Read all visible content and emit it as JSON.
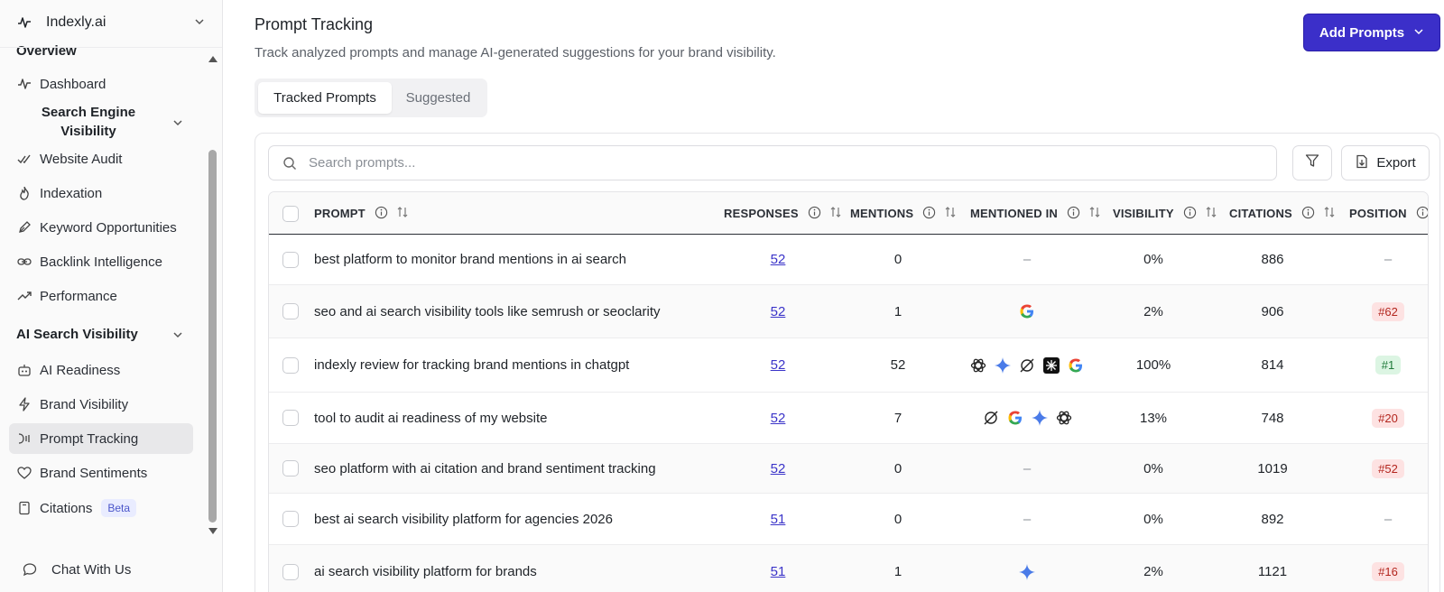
{
  "sidebar": {
    "brand": "Indexly.ai",
    "overview_label": "Overview",
    "items": [
      {
        "label": "Dashboard",
        "icon": "activity-icon"
      },
      {
        "label": "Website Audit",
        "icon": "check-check-icon"
      },
      {
        "label": "Indexation",
        "icon": "flame-icon"
      },
      {
        "label": "Keyword Opportunities",
        "icon": "pen-icon"
      },
      {
        "label": "Backlink Intelligence",
        "icon": "link-icon"
      },
      {
        "label": "Performance",
        "icon": "trending-up-icon"
      },
      {
        "label": "AI Readiness",
        "icon": "bot-icon"
      },
      {
        "label": "Brand Visibility",
        "icon": "zap-icon"
      },
      {
        "label": "Prompt Tracking",
        "icon": "prompt-icon"
      },
      {
        "label": "Brand Sentiments",
        "icon": "heart-icon"
      },
      {
        "label": "Citations",
        "icon": "book-icon",
        "badge": "Beta"
      }
    ],
    "group_search_engine": "Search Engine Visibility",
    "group_ai_search": "AI Search Visibility",
    "chat_label": "Chat With Us"
  },
  "header": {
    "title": "Prompt Tracking",
    "subtitle": "Track analyzed prompts and manage AI-generated suggestions for your brand visibility.",
    "add_button": "Add Prompts"
  },
  "tabs": [
    "Tracked Prompts",
    "Suggested"
  ],
  "search": {
    "placeholder": "Search prompts..."
  },
  "export_label": "Export",
  "columns": [
    "PROMPT",
    "RESPONSES",
    "MENTIONS",
    "MENTIONED IN",
    "VISIBILITY",
    "CITATIONS",
    "POSITION"
  ],
  "rows": [
    {
      "prompt": "best platform to monitor brand mentions in ai search",
      "responses": "52",
      "mentions": "0",
      "engines": [],
      "visibility": "0%",
      "citations": "886",
      "position": "–"
    },
    {
      "prompt": "seo and ai search visibility tools like semrush or seoclarity",
      "responses": "52",
      "mentions": "1",
      "engines": [
        "google"
      ],
      "visibility": "2%",
      "citations": "906",
      "position": "#62"
    },
    {
      "prompt": "indexly review for tracking brand mentions in chatgpt",
      "responses": "52",
      "mentions": "52",
      "engines": [
        "chatgpt",
        "gemini",
        "perplexity",
        "grok",
        "google"
      ],
      "visibility": "100%",
      "citations": "814",
      "position": "#1"
    },
    {
      "prompt": "tool to audit ai readiness of my website",
      "responses": "52",
      "mentions": "7",
      "engines": [
        "perplexity",
        "google",
        "gemini",
        "chatgpt"
      ],
      "visibility": "13%",
      "citations": "748",
      "position": "#20"
    },
    {
      "prompt": "seo platform with ai citation and brand sentiment tracking",
      "responses": "52",
      "mentions": "0",
      "engines": [],
      "visibility": "0%",
      "citations": "1019",
      "position": "#52"
    },
    {
      "prompt": "best ai search visibility platform for agencies 2026",
      "responses": "51",
      "mentions": "0",
      "engines": [],
      "visibility": "0%",
      "citations": "892",
      "position": "–"
    },
    {
      "prompt": "ai search visibility platform for brands",
      "responses": "51",
      "mentions": "1",
      "engines": [
        "gemini"
      ],
      "visibility": "2%",
      "citations": "1121",
      "position": "#16"
    }
  ],
  "colors": {
    "accent": "#3b2fc9",
    "link": "#3b34c9",
    "badge_red_bg": "#fde2e2",
    "badge_green_bg": "#dcf5e3"
  }
}
